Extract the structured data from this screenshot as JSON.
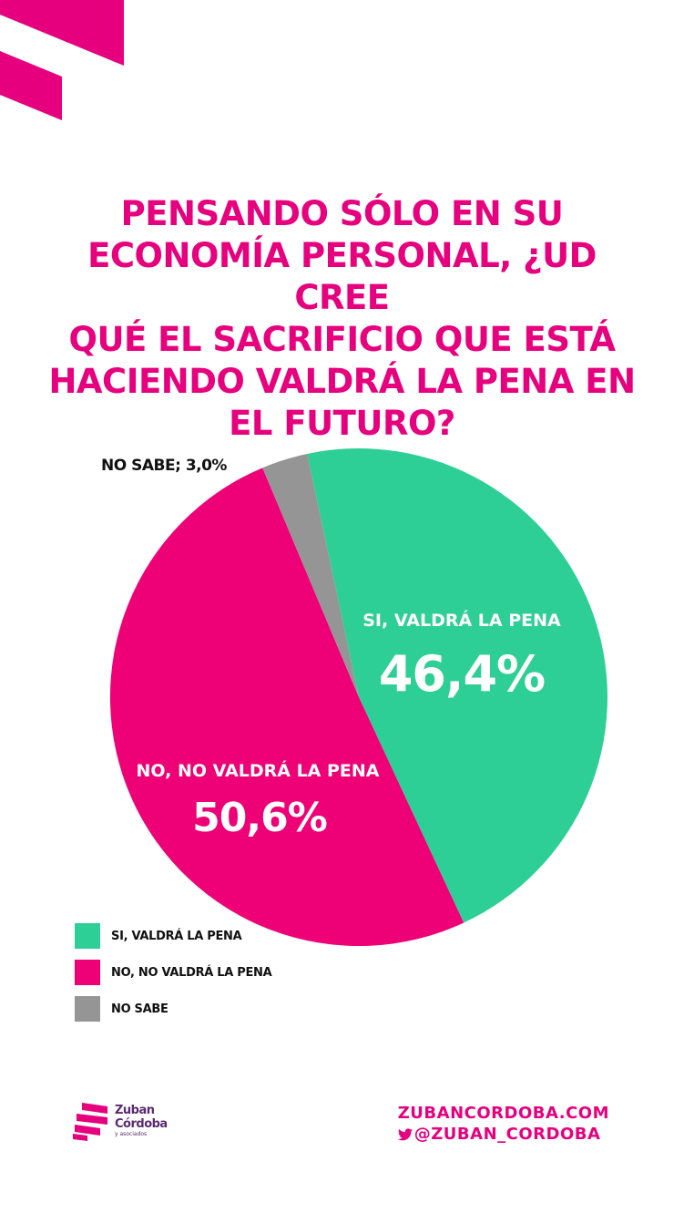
{
  "title_lines": [
    "PENSANDO SÓLO EN SU",
    "ECONOMÍA PERSONAL, ¿UD CREE",
    "QUÉ EL SACRIFICIO QUE ESTÁ",
    "HACIENDO VALDRÁ LA PENA EN",
    "EL FUTURO?"
  ],
  "colors": {
    "accent": "#e6007e",
    "si": "#2ecf97",
    "no": "#ee0077",
    "ns": "#959595"
  },
  "chart_data": {
    "type": "pie",
    "title": "PENSANDO SÓLO EN SU ECONOMÍA PERSONAL, ¿UD CREE QUÉ EL SACRIFICIO QUE ESTÁ HACIENDO VALDRÁ LA PENA EN EL FUTURO?",
    "slices": [
      {
        "key": "si",
        "label": "SI, VALDRÁ LA PENA",
        "value": 46.4,
        "value_text": "46,4%",
        "color": "#2ecf97"
      },
      {
        "key": "no",
        "label": "NO, NO VALDRÁ LA PENA",
        "value": 50.6,
        "value_text": "50,6%",
        "color": "#ee0077"
      },
      {
        "key": "ns",
        "label": "NO SABE",
        "value": 3.0,
        "value_text": "NO SABE; 3,0%",
        "color": "#959595"
      }
    ],
    "legend_placement": "bottom-left",
    "legend": [
      "SI, VALDRÁ LA PENA",
      "NO, NO VALDRÁ LA PENA",
      "NO SABE"
    ]
  },
  "footer": {
    "logo_line1": "Zuban",
    "logo_line2": "Córdoba",
    "logo_sub": "y asociados",
    "website": "ZUBANCORDOBA.COM",
    "twitter": "@ZUBAN_CORDOBA"
  }
}
